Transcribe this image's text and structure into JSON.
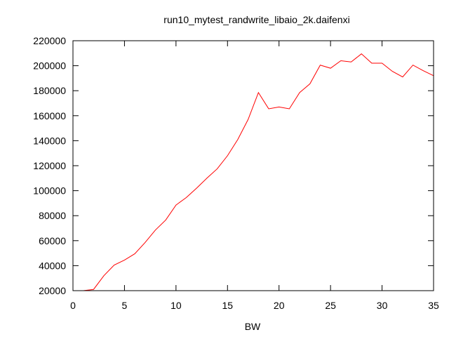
{
  "chart_data": {
    "type": "line",
    "title": "run10_mytest_randwrite_libaio_2k.daifenxi",
    "xlabel": "BW",
    "ylabel": "",
    "xlim": [
      0,
      35
    ],
    "ylim": [
      20000,
      220000
    ],
    "xticks": [
      0,
      5,
      10,
      15,
      20,
      25,
      30,
      35
    ],
    "yticks": [
      20000,
      40000,
      60000,
      80000,
      100000,
      120000,
      140000,
      160000,
      180000,
      200000,
      220000
    ],
    "grid": false,
    "series": [
      {
        "color": "#ff0000",
        "x": [
          1,
          2,
          3,
          4,
          5,
          6,
          7,
          8,
          9,
          10,
          11,
          12,
          13,
          14,
          15,
          16,
          17,
          18,
          19,
          20,
          21,
          22,
          23,
          24,
          25,
          26,
          27,
          28,
          29,
          30,
          31,
          32,
          33,
          34,
          35
        ],
        "y": [
          20000,
          21000,
          32000,
          40500,
          44500,
          49500,
          58500,
          68500,
          76500,
          88500,
          94500,
          102000,
          110000,
          117500,
          128000,
          141000,
          157000,
          178500,
          165500,
          167000,
          165500,
          178500,
          185500,
          200500,
          198000,
          204000,
          203000,
          209500,
          202000,
          202000,
          195500,
          191000,
          200500,
          196000,
          192000
        ]
      }
    ]
  }
}
